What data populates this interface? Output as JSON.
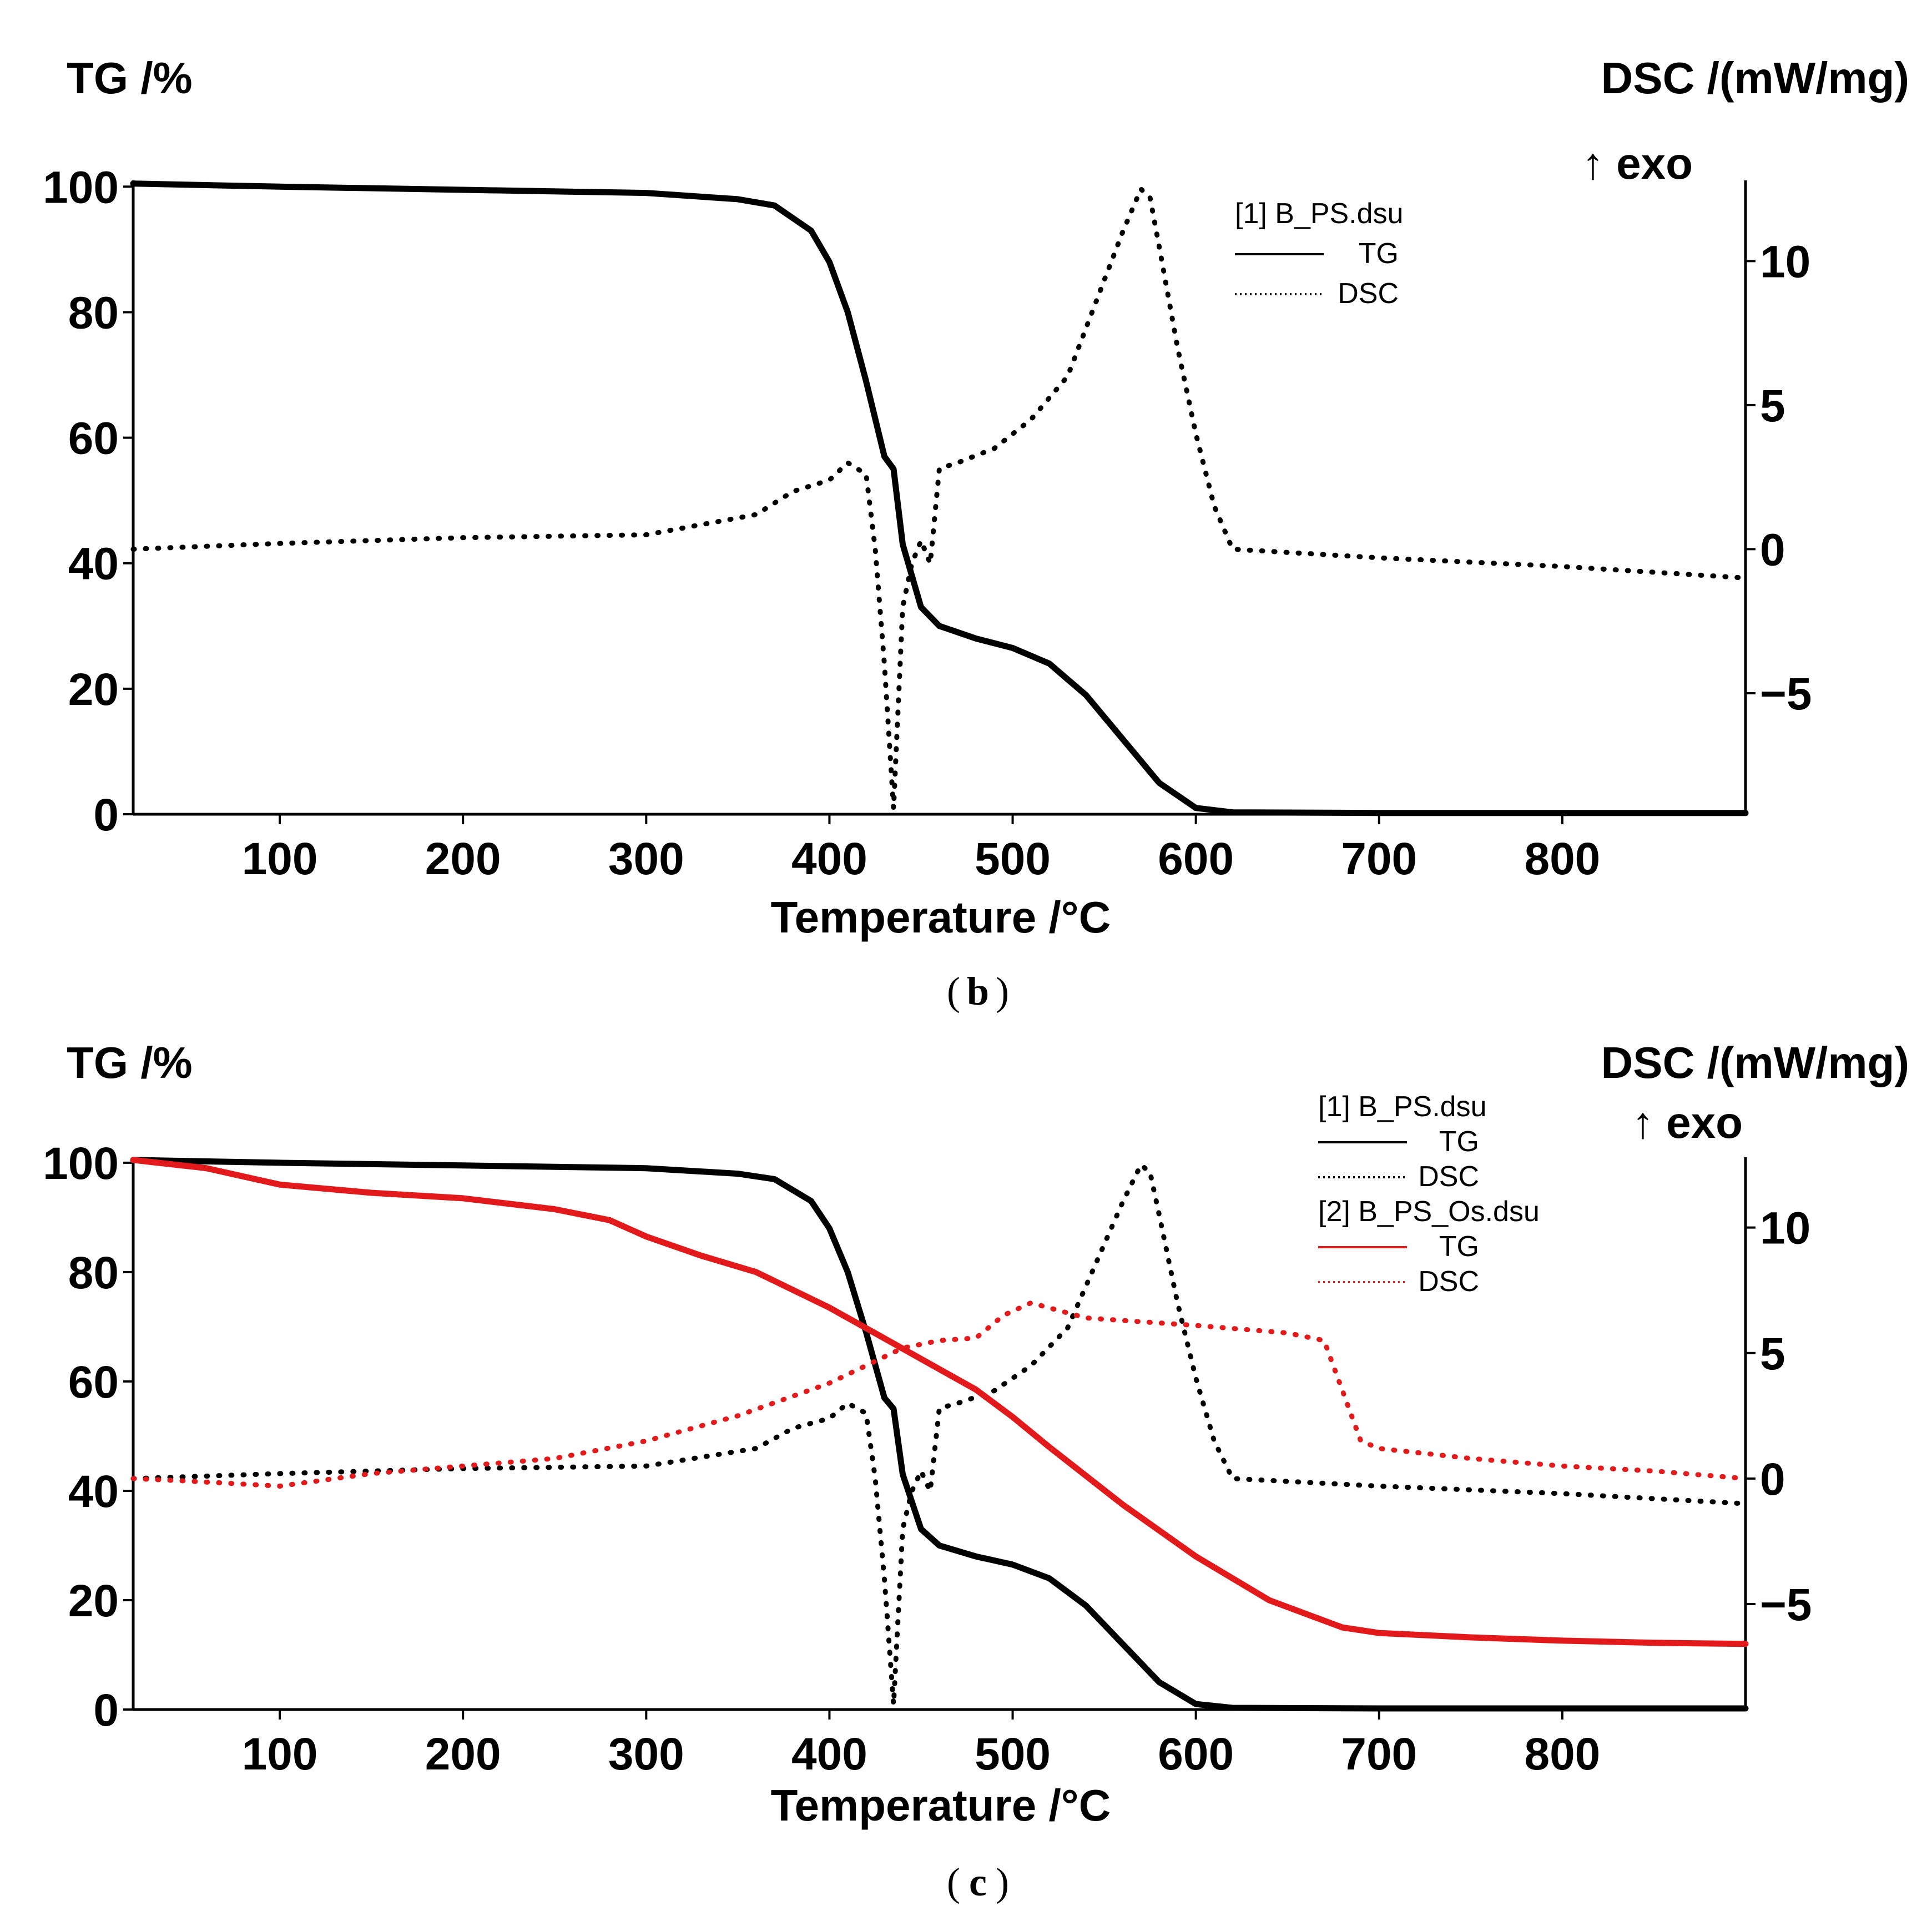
{
  "chart_data": [
    {
      "panel": "(b)",
      "caption_letter": "b",
      "type": "line",
      "xlabel": "Temperature /°C",
      "ylabel_left": "TG /%",
      "ylabel_right": "DSC /(mW/mg)",
      "exo_label": "↑ exo",
      "xlim": [
        20,
        900
      ],
      "ylim_left": [
        0,
        101
      ],
      "ylim_right": [
        -9.2,
        12.8
      ],
      "x_ticks": [
        100,
        200,
        300,
        400,
        500,
        600,
        700,
        800
      ],
      "y_left_ticks": [
        0,
        20,
        40,
        60,
        80,
        100
      ],
      "y_right_ticks": [
        -5,
        0,
        5,
        10
      ],
      "y_right_tick_labels": [
        "−5",
        "0",
        "5",
        "10"
      ],
      "legend": [
        {
          "text": "[1] B_PS.dsu",
          "type": "header"
        },
        {
          "text": "TG",
          "type": "line",
          "color": "#000000",
          "dash": "solid"
        },
        {
          "text": "DSC",
          "type": "line",
          "color": "#000000",
          "dash": "dotted"
        }
      ],
      "series": [
        {
          "name": "[1] B_PS.dsu TG",
          "axis": "left",
          "color": "#000000",
          "style": "solid",
          "x": [
            20,
            100,
            200,
            300,
            350,
            370,
            390,
            400,
            410,
            420,
            430,
            435,
            440,
            450,
            460,
            480,
            500,
            520,
            540,
            560,
            580,
            600,
            620,
            700,
            800,
            900
          ],
          "y": [
            100.5,
            100,
            99.5,
            99,
            98,
            97,
            93,
            88,
            80,
            69,
            57,
            55,
            43,
            33,
            30,
            28,
            26.5,
            24,
            19,
            12,
            5,
            1,
            0.3,
            0.2,
            0.2,
            0.2
          ]
        },
        {
          "name": "[1] B_PS.dsu DSC",
          "axis": "right",
          "color": "#000000",
          "style": "dotted",
          "x": [
            20,
            100,
            200,
            300,
            360,
            380,
            390,
            400,
            410,
            420,
            425,
            430,
            435,
            440,
            445,
            450,
            455,
            460,
            470,
            490,
            510,
            530,
            545,
            560,
            570,
            575,
            580,
            590,
            600,
            610,
            620,
            700,
            800,
            900
          ],
          "y": [
            0,
            0.2,
            0.4,
            0.5,
            1.2,
            2,
            2.2,
            2.4,
            3,
            2.6,
            0,
            -4,
            -9,
            -2,
            -0.5,
            0.3,
            -0.5,
            2.8,
            3,
            3.5,
            4.5,
            6,
            8.5,
            11,
            12.5,
            12.2,
            10.5,
            7,
            4,
            1.5,
            0,
            -0.3,
            -0.6,
            -1
          ]
        }
      ]
    },
    {
      "panel": "(c)",
      "caption_letter": "c",
      "type": "line",
      "xlabel": "Temperature /°C",
      "ylabel_left": "TG /%",
      "ylabel_right": "DSC /(mW/mg)",
      "exo_label": "↑ exo",
      "xlim": [
        20,
        900
      ],
      "ylim_left": [
        0,
        101
      ],
      "ylim_right": [
        -9.2,
        12.8
      ],
      "x_ticks": [
        100,
        200,
        300,
        400,
        500,
        600,
        700,
        800
      ],
      "y_left_ticks": [
        0,
        20,
        40,
        60,
        80,
        100
      ],
      "y_right_ticks": [
        -5,
        0,
        5,
        10
      ],
      "y_right_tick_labels": [
        "−5",
        "0",
        "5",
        "10"
      ],
      "legend": [
        {
          "text": "[1] B_PS.dsu",
          "type": "header"
        },
        {
          "text": "TG",
          "type": "line",
          "color": "#000000",
          "dash": "solid"
        },
        {
          "text": "DSC",
          "type": "line",
          "color": "#000000",
          "dash": "dotted"
        },
        {
          "text": "[2] B_PS_Os.dsu",
          "type": "header"
        },
        {
          "text": "TG",
          "type": "line",
          "color": "#e31a1c",
          "dash": "solid"
        },
        {
          "text": "DSC",
          "type": "line",
          "color": "#e31a1c",
          "dash": "dotted"
        }
      ],
      "series": [
        {
          "name": "[1] B_PS.dsu TG",
          "axis": "left",
          "color": "#000000",
          "style": "solid",
          "x": [
            20,
            100,
            200,
            300,
            350,
            370,
            390,
            400,
            410,
            420,
            430,
            435,
            440,
            450,
            460,
            480,
            500,
            520,
            540,
            560,
            580,
            600,
            620,
            700,
            800,
            900
          ],
          "y": [
            100.5,
            100,
            99.5,
            99,
            98,
            97,
            93,
            88,
            80,
            69,
            57,
            55,
            43,
            33,
            30,
            28,
            26.5,
            24,
            19,
            12,
            5,
            1,
            0.3,
            0.2,
            0.2,
            0.2
          ]
        },
        {
          "name": "[1] B_PS.dsu DSC",
          "axis": "right",
          "color": "#000000",
          "style": "dotted",
          "x": [
            20,
            100,
            200,
            300,
            360,
            380,
            390,
            400,
            410,
            420,
            425,
            430,
            435,
            440,
            445,
            450,
            455,
            460,
            470,
            490,
            510,
            530,
            545,
            560,
            570,
            575,
            580,
            590,
            600,
            610,
            620,
            700,
            800,
            900
          ],
          "y": [
            0,
            0.2,
            0.4,
            0.5,
            1.2,
            2,
            2.2,
            2.4,
            3,
            2.6,
            0,
            -4,
            -9,
            -2,
            -0.5,
            0.3,
            -0.5,
            2.8,
            3,
            3.5,
            4.5,
            6,
            8.5,
            11,
            12.5,
            12.2,
            10.5,
            7,
            4,
            1.5,
            0,
            -0.3,
            -0.6,
            -1
          ]
        },
        {
          "name": "[2] B_PS_Os.dsu TG",
          "axis": "left",
          "color": "#e31a1c",
          "style": "solid",
          "x": [
            20,
            60,
            100,
            150,
            200,
            250,
            280,
            300,
            330,
            360,
            400,
            440,
            480,
            500,
            520,
            560,
            600,
            640,
            680,
            700,
            750,
            800,
            850,
            900
          ],
          "y": [
            100.5,
            99,
            96,
            94.5,
            93.5,
            91.5,
            89.5,
            86.5,
            83,
            80,
            73.5,
            66,
            58.5,
            53.5,
            48,
            37.5,
            28,
            20,
            15,
            14,
            13.2,
            12.6,
            12.2,
            12
          ]
        },
        {
          "name": "[2] B_PS_Os.dsu DSC",
          "axis": "right",
          "color": "#e31a1c",
          "style": "dotted",
          "x": [
            20,
            50,
            100,
            150,
            200,
            250,
            300,
            350,
            400,
            440,
            460,
            480,
            495,
            510,
            520,
            540,
            560,
            600,
            650,
            670,
            680,
            690,
            700,
            750,
            800,
            850,
            900
          ],
          "y": [
            0,
            -0.1,
            -0.3,
            0.2,
            0.5,
            0.8,
            1.5,
            2.5,
            3.8,
            5.2,
            5.5,
            5.6,
            6.5,
            7,
            6.8,
            6.4,
            6.3,
            6.1,
            5.8,
            5.5,
            3.5,
            1.5,
            1.2,
            0.8,
            0.5,
            0.3,
            0
          ]
        }
      ]
    }
  ]
}
